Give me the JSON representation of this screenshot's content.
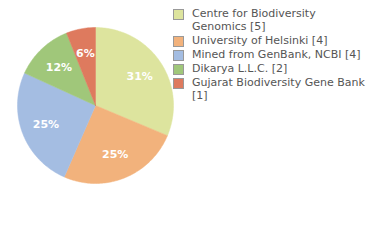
{
  "chart_data": {
    "type": "pie",
    "categories": [
      "Centre for Biodiversity Genomics [5]",
      "University of Helsinki [4]",
      "Mined from GenBank, NCBI [4]",
      "Dikarya L.L.C. [2]",
      "Gujarat Biodiversity Gene Bank [1]"
    ],
    "values": [
      31,
      25,
      25,
      12,
      6
    ],
    "value_labels": [
      "31%",
      "25%",
      "25%",
      "12%",
      "6%"
    ],
    "colors": [
      "#dde49e",
      "#f2b27c",
      "#a4bde2",
      "#a0c77a",
      "#de7a5e"
    ],
    "data_labels": true,
    "legend": "top-right"
  }
}
